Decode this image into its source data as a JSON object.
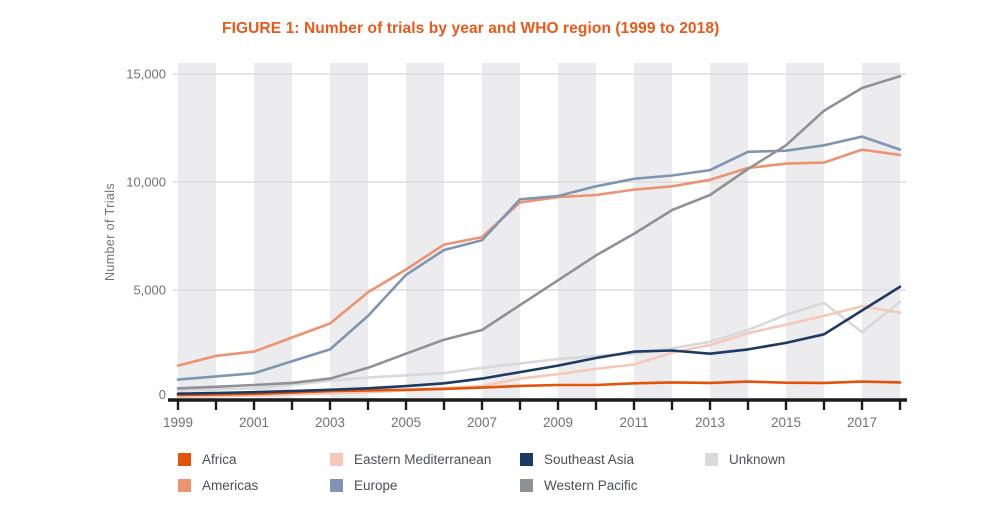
{
  "figure": {
    "title": "FIGURE 1: Number of trials by year and WHO region (1999 to 2018)",
    "title_color": "#e8591a"
  },
  "axes": {
    "y_label": "Number of Trials",
    "y_ticks": [
      {
        "value": 0,
        "label": "0"
      },
      {
        "value": 5000,
        "label": "5,000"
      },
      {
        "value": 10000,
        "label": "10,000"
      },
      {
        "value": 15000,
        "label": "15,000"
      }
    ],
    "x_tick_labels": [
      "1999",
      "2001",
      "2003",
      "2005",
      "2007",
      "2009",
      "2011",
      "2013",
      "2015",
      "2017"
    ],
    "tick_text_color": "#6f7377",
    "axis_line_color": "#1c1c1c",
    "gridline_color": "#d8d8da",
    "band_color": "#ececee"
  },
  "legend": {
    "items": [
      {
        "label": "Africa",
        "color": "#e2530b"
      },
      {
        "label": "Eastern Mediterranean",
        "color": "#f5c9ba"
      },
      {
        "label": "Southeast Asia",
        "color": "#1d3a64"
      },
      {
        "label": "Unknown",
        "color": "#d8d9db"
      },
      {
        "label": "Americas",
        "color": "#ec9472"
      },
      {
        "label": "Europe",
        "color": "#8095b1"
      },
      {
        "label": "Western Pacific",
        "color": "#8e9295"
      }
    ]
  },
  "chart_data": {
    "type": "line",
    "title": "FIGURE 1: Number of trials by year and WHO region (1999 to 2018)",
    "xlabel": "",
    "ylabel": "Number of Trials",
    "ylim": [
      0,
      15000
    ],
    "grid": "horizontal",
    "background": "alternating vertical gray year-pair bands",
    "legend_position": "bottom",
    "x": [
      1999,
      2000,
      2001,
      2002,
      2003,
      2004,
      2005,
      2006,
      2007,
      2008,
      2009,
      2010,
      2011,
      2012,
      2013,
      2014,
      2015,
      2016,
      2017,
      2018
    ],
    "series": [
      {
        "name": "Africa",
        "color": "#e2530b",
        "values": [
          140,
          160,
          190,
          250,
          320,
          350,
          380,
          420,
          480,
          560,
          600,
          600,
          680,
          720,
          700,
          760,
          710,
          700,
          760,
          720
        ]
      },
      {
        "name": "Americas",
        "color": "#ec9472",
        "values": [
          1500,
          1950,
          2150,
          2800,
          3450,
          4900,
          5950,
          7100,
          7450,
          9050,
          9300,
          9400,
          9650,
          9800,
          10100,
          10650,
          10850,
          10900,
          11500,
          11250
        ]
      },
      {
        "name": "Eastern Mediterranean",
        "color": "#f5c9ba",
        "values": [
          60,
          90,
          120,
          160,
          210,
          270,
          350,
          450,
          550,
          900,
          1100,
          1350,
          1550,
          2100,
          2450,
          3000,
          3400,
          3800,
          4250,
          3950
        ]
      },
      {
        "name": "Europe",
        "color": "#8095b1",
        "values": [
          850,
          1000,
          1150,
          1700,
          2250,
          3800,
          5700,
          6850,
          7300,
          9200,
          9350,
          9800,
          10150,
          10300,
          10550,
          11400,
          11450,
          11700,
          12100,
          11500
        ]
      },
      {
        "name": "Southeast Asia",
        "color": "#1d3a64",
        "values": [
          200,
          230,
          270,
          320,
          380,
          450,
          550,
          680,
          900,
          1200,
          1500,
          1850,
          2150,
          2200,
          2050,
          2250,
          2550,
          2950,
          4050,
          5150
        ]
      },
      {
        "name": "Unknown",
        "color": "#d8d9db",
        "values": [
          350,
          400,
          450,
          600,
          800,
          950,
          1050,
          1150,
          1400,
          1600,
          1800,
          1950,
          2050,
          2300,
          2600,
          3150,
          3850,
          4400,
          3050,
          4450
        ]
      },
      {
        "name": "Western Pacific",
        "color": "#8e9295",
        "values": [
          450,
          520,
          600,
          700,
          900,
          1400,
          2050,
          2700,
          3150,
          4300,
          5450,
          6600,
          7600,
          8700,
          9400,
          10600,
          11700,
          13300,
          14350,
          14900
        ]
      }
    ]
  }
}
